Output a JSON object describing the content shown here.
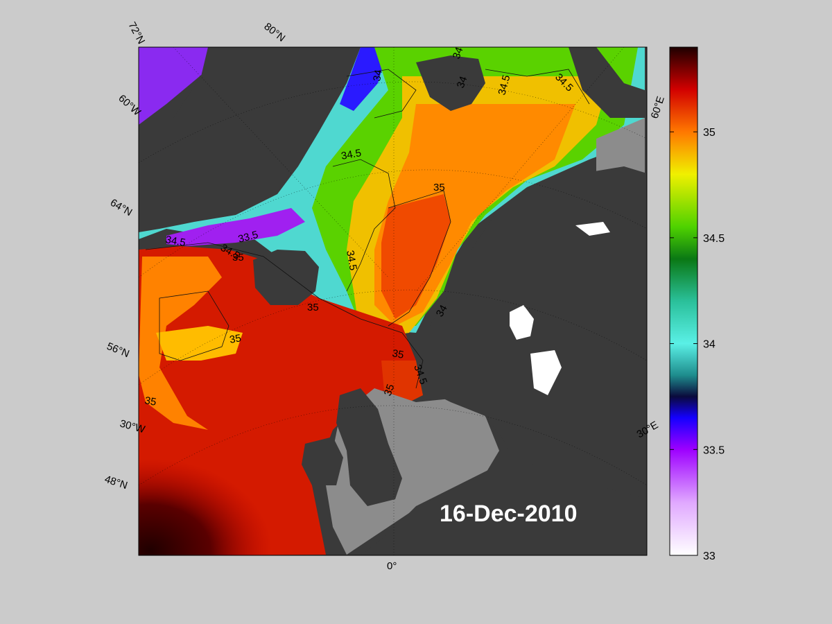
{
  "map": {
    "date_label": "16-Dec-2010",
    "graticule_labels": {
      "lat_72": "72°N",
      "lat_64": "64°N",
      "lat_56": "56°N",
      "lat_48": "48°N",
      "lon_80N": "80°N",
      "lon_60W": "60°W",
      "lon_30W": "30°W",
      "lon_0": "0°",
      "lon_30E": "30°E",
      "lon_60E": "60°E"
    },
    "contour_labels": [
      "34",
      "34",
      "34.5",
      "34.5",
      "34.5",
      "35",
      "34.5",
      "34.5",
      "33.5",
      "35",
      "34.5",
      "35",
      "35",
      "35",
      "34",
      "35",
      "34.5",
      "35",
      "34"
    ],
    "colors": {
      "background": "#cbcbcb",
      "land": "#3a3a3a",
      "masked_sea": "#8c8c8c"
    }
  },
  "colorbar": {
    "min": 33,
    "max": 35.4,
    "ticks": [
      "35",
      "34.5",
      "34",
      "33.5",
      "33"
    ],
    "tick_values": [
      35,
      34.5,
      34,
      33.5,
      33
    ],
    "stops": [
      {
        "v": 33.0,
        "c": "#ffffff"
      },
      {
        "v": 33.25,
        "c": "#e0a8ff"
      },
      {
        "v": 33.5,
        "c": "#9d00ff"
      },
      {
        "v": 33.65,
        "c": "#1400ff"
      },
      {
        "v": 33.75,
        "c": "#0a0a3c"
      },
      {
        "v": 33.85,
        "c": "#1e8c8c"
      },
      {
        "v": 34.0,
        "c": "#5af0e6"
      },
      {
        "v": 34.2,
        "c": "#2ac09a"
      },
      {
        "v": 34.4,
        "c": "#0a7814"
      },
      {
        "v": 34.55,
        "c": "#4ed200"
      },
      {
        "v": 34.8,
        "c": "#f0f000"
      },
      {
        "v": 35.0,
        "c": "#ff7800"
      },
      {
        "v": 35.2,
        "c": "#d20000"
      },
      {
        "v": 35.4,
        "c": "#1e0000"
      }
    ]
  }
}
